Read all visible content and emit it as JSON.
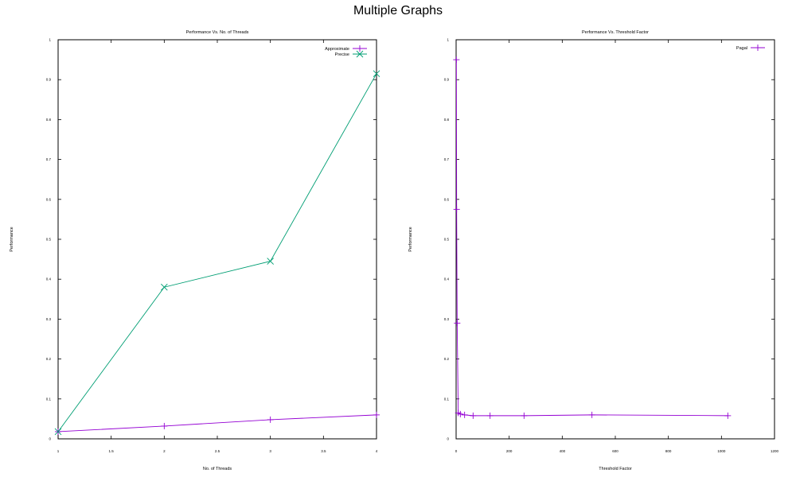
{
  "title": "Multiple Graphs",
  "colors": {
    "purple": "#9400d3",
    "green": "#009e73",
    "axis": "#000000"
  },
  "chart_data": [
    {
      "type": "line",
      "title": "Performance Vs. No. of Threads",
      "xlabel": "No. of Threads",
      "ylabel": "Performance",
      "xlim": [
        1,
        4
      ],
      "ylim": [
        0,
        1
      ],
      "xticks": [
        "1",
        "1.5",
        "2",
        "2.5",
        "3",
        "3.5",
        "4"
      ],
      "yticks": [
        "0",
        "0.1",
        "0.2",
        "0.3",
        "0.4",
        "0.5",
        "0.6",
        "0.7",
        "0.8",
        "0.9",
        "1"
      ],
      "legend_position": "top-right",
      "series": [
        {
          "name": "Approximate",
          "color": "#9400d3",
          "marker": "plus",
          "x": [
            1,
            2,
            3,
            4
          ],
          "y": [
            0.018,
            0.032,
            0.048,
            0.06
          ]
        },
        {
          "name": "Precise",
          "color": "#009e73",
          "marker": "cross",
          "x": [
            1,
            2,
            3,
            4
          ],
          "y": [
            0.018,
            0.38,
            0.445,
            0.915
          ]
        }
      ]
    },
    {
      "type": "line",
      "title": "Performance Vs. Threshold Factor",
      "xlabel": "Threshold Factor",
      "ylabel": "Performance",
      "xlim": [
        0,
        1200
      ],
      "ylim": [
        0,
        1
      ],
      "xticks": [
        "0",
        "200",
        "400",
        "600",
        "800",
        "1000",
        "1200"
      ],
      "yticks": [
        "0",
        "0.1",
        "0.2",
        "0.3",
        "0.4",
        "0.5",
        "0.6",
        "0.7",
        "0.8",
        "0.9",
        "1"
      ],
      "legend_position": "top-right",
      "series": [
        {
          "name": "Pagal",
          "color": "#9400d3",
          "marker": "plus",
          "x": [
            1,
            2,
            4,
            8,
            16,
            32,
            64,
            128,
            256,
            512,
            1024
          ],
          "y": [
            0.95,
            0.575,
            0.29,
            0.065,
            0.062,
            0.06,
            0.058,
            0.058,
            0.058,
            0.06,
            0.058
          ]
        }
      ]
    }
  ]
}
